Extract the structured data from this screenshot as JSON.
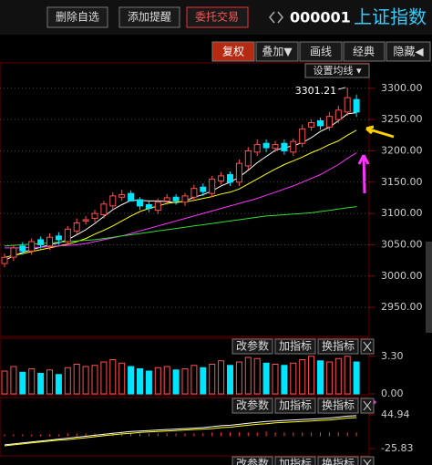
{
  "toolbar": {
    "buttons": [
      "删除自选",
      "添加提醒",
      "委托交易"
    ],
    "code": "000001",
    "name": "上证指数"
  },
  "tabs": [
    "复权",
    "叠加▼",
    "画线",
    "经典",
    "隐藏◀"
  ],
  "ma_button": "设置均线 ▾",
  "panel_buttons": [
    "改参数",
    "加指标",
    "换指标"
  ],
  "chart_data": [
    {
      "type": "candlestick",
      "open": [
        3020,
        3030,
        3048,
        3040,
        3058,
        3048,
        3064,
        3055,
        3072,
        3088,
        3092,
        3098,
        3112,
        3126,
        3132,
        3122,
        3114,
        3105,
        3120,
        3126,
        3118,
        3126,
        3142,
        3132,
        3152,
        3162,
        3150,
        3176,
        3198,
        3212,
        3204,
        3212,
        3198,
        3212,
        3238,
        3248,
        3238,
        3250,
        3262,
        3282
      ],
      "high": [
        3036,
        3050,
        3054,
        3060,
        3063,
        3068,
        3070,
        3080,
        3092,
        3096,
        3106,
        3120,
        3134,
        3138,
        3137,
        3126,
        3119,
        3124,
        3131,
        3131,
        3133,
        3146,
        3148,
        3160,
        3166,
        3167,
        3186,
        3206,
        3218,
        3218,
        3216,
        3218,
        3220,
        3242,
        3250,
        3253,
        3262,
        3272,
        3301.21,
        3290
      ],
      "low": [
        3014,
        3024,
        3034,
        3034,
        3044,
        3042,
        3050,
        3050,
        3066,
        3082,
        3086,
        3092,
        3106,
        3120,
        3124,
        3106,
        3102,
        3099,
        3114,
        3114,
        3112,
        3120,
        3128,
        3126,
        3146,
        3144,
        3144,
        3170,
        3192,
        3198,
        3198,
        3194,
        3192,
        3206,
        3232,
        3234,
        3232,
        3244,
        3256,
        3254
      ],
      "close": [
        3030,
        3045,
        3040,
        3055,
        3050,
        3062,
        3058,
        3075,
        3085,
        3090,
        3100,
        3115,
        3128,
        3130,
        3120,
        3112,
        3108,
        3118,
        3125,
        3120,
        3128,
        3140,
        3135,
        3155,
        3160,
        3150,
        3180,
        3200,
        3210,
        3205,
        3210,
        3200,
        3215,
        3235,
        3245,
        3240,
        3255,
        3265,
        3285,
        3262
      ],
      "up_color": "#ff5050",
      "down_color": "#00e5ff",
      "series": [
        {
          "color": "#ffffff",
          "values": [
            3025,
            3032,
            3038,
            3042,
            3046,
            3050,
            3053,
            3058,
            3066,
            3074,
            3084,
            3095,
            3106,
            3114,
            3121,
            3121,
            3120,
            3120,
            3119,
            3117,
            3120,
            3126,
            3130,
            3136,
            3144,
            3150,
            3158,
            3169,
            3181,
            3191,
            3201,
            3205,
            3208,
            3213,
            3221,
            3231,
            3238,
            3248,
            3259,
            3261
          ]
        },
        {
          "color": "#ffff00",
          "values": [
            3030,
            3033,
            3036,
            3039,
            3042,
            3045,
            3048,
            3051,
            3055,
            3060,
            3067,
            3073,
            3080,
            3088,
            3096,
            3103,
            3108,
            3112,
            3116,
            3118,
            3119,
            3121,
            3124,
            3127,
            3131,
            3134,
            3139,
            3147,
            3155,
            3163,
            3171,
            3178,
            3184,
            3190,
            3197,
            3203,
            3210,
            3216,
            3225,
            3233
          ]
        },
        {
          "color": "#ff33ff",
          "values": [
            3045,
            3045,
            3045,
            3046,
            3046,
            3047,
            3048,
            3049,
            3050,
            3052,
            3055,
            3058,
            3061,
            3064,
            3068,
            3072,
            3076,
            3080,
            3084,
            3088,
            3092,
            3096,
            3100,
            3104,
            3108,
            3112,
            3116,
            3120,
            3124,
            3129,
            3134,
            3139,
            3144,
            3150,
            3156,
            3162,
            3170,
            3178,
            3188,
            3197
          ]
        },
        {
          "color": "#33dd33",
          "values": [
            3048,
            3049,
            3050,
            3051,
            3052,
            3053,
            3054,
            3055,
            3056,
            3057,
            3058,
            3060,
            3062,
            3064,
            3066,
            3068,
            3070,
            3072,
            3074,
            3076,
            3078,
            3080,
            3082,
            3084,
            3086,
            3088,
            3090,
            3092,
            3094,
            3096,
            3097,
            3098,
            3099,
            3100,
            3101,
            3103,
            3105,
            3107,
            3109,
            3111
          ]
        }
      ],
      "annotations": [
        {
          "text": "3301.21"
        }
      ],
      "ylim": [
        2905,
        3339
      ],
      "yticks": [
        {
          "value": 2950,
          "label": "2950.00"
        },
        {
          "value": 3000,
          "label": "3000.00"
        },
        {
          "value": 3050,
          "label": "3050.00"
        },
        {
          "value": 3100,
          "label": "3100.00"
        },
        {
          "value": 3150,
          "label": "3150.00"
        },
        {
          "value": 3200,
          "label": "3200.00"
        },
        {
          "value": 3250,
          "label": "3250.00"
        },
        {
          "value": 3300,
          "label": "3300.00"
        }
      ]
    },
    {
      "type": "bar",
      "values": [
        2.0,
        2.4,
        1.9,
        2.2,
        1.8,
        2.1,
        1.7,
        2.3,
        2.6,
        2.4,
        2.5,
        2.8,
        3.0,
        2.7,
        2.4,
        2.2,
        2.0,
        2.3,
        2.4,
        2.1,
        2.2,
        2.5,
        2.3,
        2.6,
        2.9,
        2.5,
        2.8,
        3.2,
        3.1,
        2.7,
        2.6,
        2.5,
        2.7,
        3.0,
        3.3,
        2.9,
        2.8,
        3.1,
        3.3,
        2.8
      ],
      "ylim": [
        0,
        4.8
      ],
      "yticks": [
        {
          "value": 0,
          "label": "0.00"
        },
        {
          "value": 3.3,
          "label": "3.30"
        }
      ]
    },
    {
      "type": "macd",
      "values": [
        4,
        4,
        4,
        4,
        4,
        4,
        4,
        6,
        6,
        6,
        6,
        6,
        6,
        6,
        8,
        6,
        6,
        6,
        6,
        6,
        6,
        6,
        6,
        8,
        8,
        8,
        8,
        8,
        8,
        10,
        8,
        8,
        8,
        8,
        8,
        8,
        8,
        8,
        8,
        8
      ],
      "bar_color": "#ff3333",
      "series": [
        {
          "color": "#ffffff",
          "values": [
            -18,
            -16,
            -14,
            -12,
            -10,
            -8,
            -6,
            -4,
            -2,
            0,
            2,
            4,
            6,
            8,
            10,
            11,
            12,
            13,
            14,
            15,
            16,
            17,
            18,
            20,
            22,
            23,
            25,
            27,
            29,
            31,
            32,
            33,
            34,
            35,
            36,
            37,
            38,
            40,
            42,
            43
          ]
        },
        {
          "color": "#ffff00",
          "values": [
            -20,
            -18,
            -16,
            -14,
            -12,
            -10,
            -8,
            -7,
            -5,
            -3,
            -1,
            1,
            3,
            5,
            6,
            8,
            9,
            10,
            11,
            12,
            13,
            14,
            15,
            16,
            18,
            19,
            21,
            23,
            25,
            26,
            28,
            29,
            30,
            31,
            32,
            33,
            34,
            36,
            38,
            39
          ]
        }
      ],
      "ylim": [
        -41,
        79
      ],
      "yticks": [
        {
          "value": 44.94,
          "label": "44.94"
        },
        {
          "value": -25.83,
          "label": "-25.83"
        }
      ]
    }
  ]
}
